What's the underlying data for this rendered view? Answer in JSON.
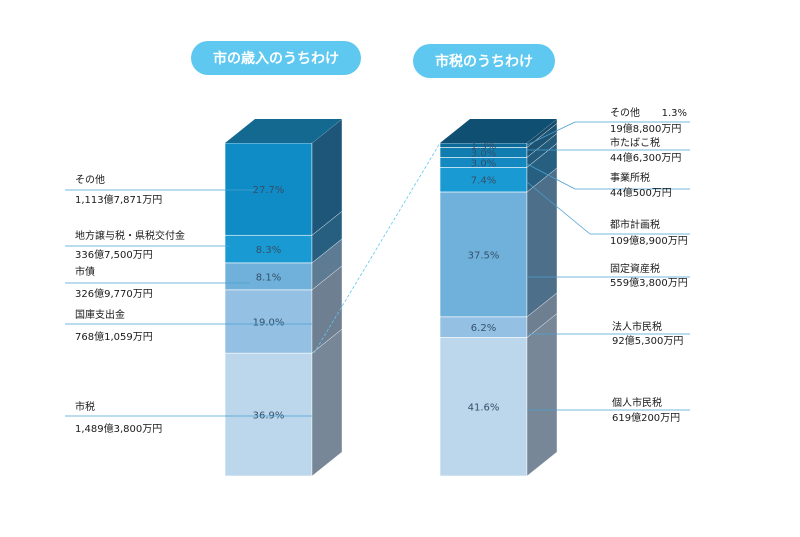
{
  "chart_data": [
    {
      "type": "bar",
      "title": "市の歳入のうちわけ",
      "categories": [
        "市税",
        "国庫支出金",
        "市債",
        "地方譲与税・県税交付金",
        "その他"
      ],
      "values": [
        36.9,
        19.0,
        8.1,
        8.3,
        27.7
      ],
      "value_labels": [
        "36.9%",
        "19.0%",
        "8.1%",
        "8.3%",
        "27.7%"
      ],
      "amounts": [
        "1,489億3,800万円",
        "768億1,059万円",
        "326億9,770万円",
        "336億7,500万円",
        "1,113億7,871万円"
      ],
      "colors": [
        "#bcd7ec",
        "#94c0e3",
        "#6fb1da",
        "#1a9ad3",
        "#0f8cc5"
      ],
      "side_colors": [
        "#778797",
        "#6e7f92",
        "#5e7b94",
        "#275f80",
        "#1d5679"
      ],
      "top_color": "#13698f",
      "ylim": [
        0,
        100
      ]
    },
    {
      "type": "bar",
      "title": "市税のうちわけ",
      "categories": [
        "個人市民税",
        "法人市民税",
        "固定資産税",
        "都市計画税",
        "事業所税",
        "市たばこ税",
        "その他"
      ],
      "values": [
        41.6,
        6.2,
        37.5,
        7.4,
        3.0,
        3.0,
        1.3
      ],
      "value_labels": [
        "41.6%",
        "6.2%",
        "37.5%",
        "7.4%",
        "3.0%",
        "3.0%",
        "1.3%"
      ],
      "amounts": [
        "619億200万円",
        "92億5,300万円",
        "559億3,800万円",
        "109億8,900万円",
        "44億500万円",
        "44億6,300万円",
        "19億8,800万円"
      ],
      "colors": [
        "#bcd7ec",
        "#94c0e3",
        "#6fb1da",
        "#1a9ad3",
        "#1488c0",
        "#117cb0",
        "#0c6a98"
      ],
      "side_colors": [
        "#778797",
        "#6e7f92",
        "#4d6f8a",
        "#275f80",
        "#215a7a",
        "#1c5373",
        "#174b69"
      ],
      "top_color": "#0e4f72",
      "ylim": [
        0,
        100
      ]
    }
  ]
}
